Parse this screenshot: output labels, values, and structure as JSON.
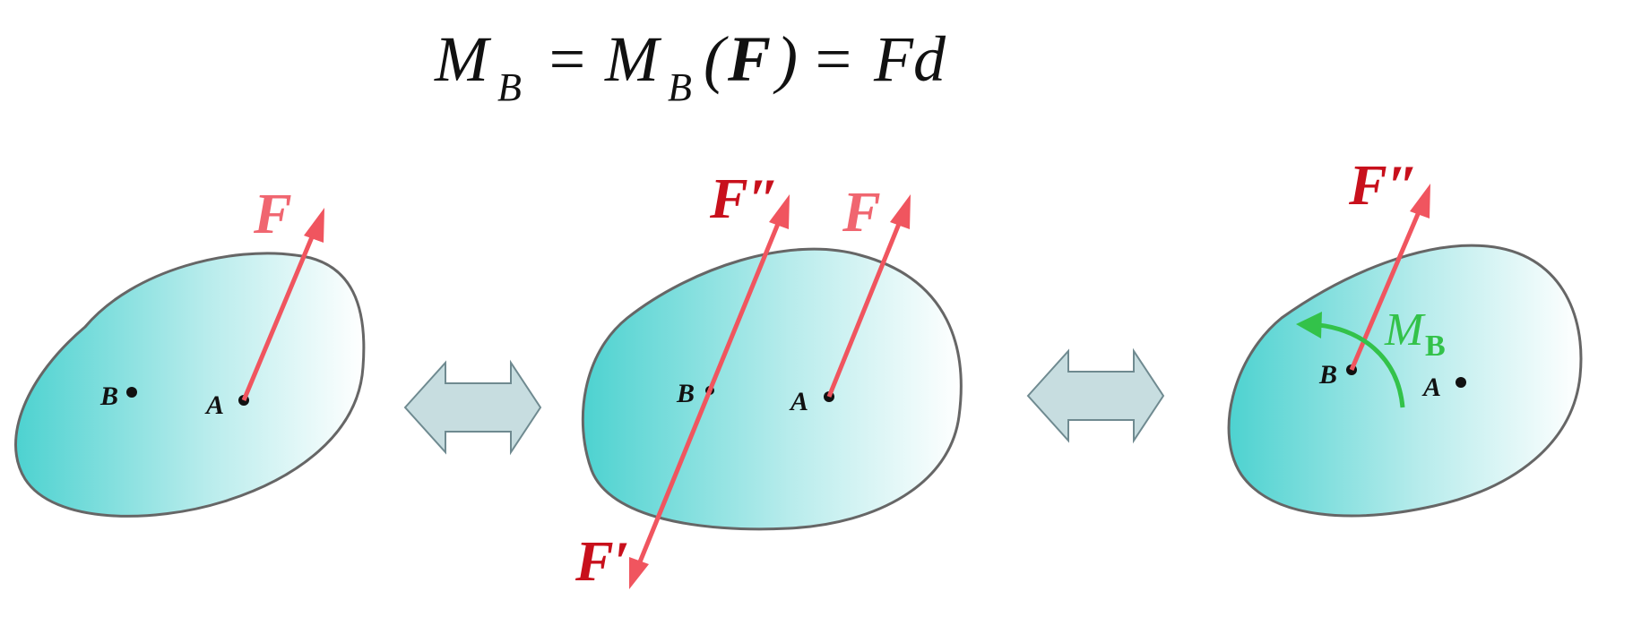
{
  "formula": {
    "M": "M",
    "sub_B": "B",
    "eq1": "=",
    "M2": "M",
    "sub_B2": "B",
    "lparen": "(",
    "F": "F",
    "rparen": ")",
    "eq2": "=",
    "Fd": "Fd"
  },
  "colors": {
    "force": "#f0555f",
    "force_label_light": "#f06670",
    "force_label_dark": "#c8101c",
    "moment": "#33c24a",
    "body_fill_dark": "#4dd2d0",
    "body_fill_light": "#ffffff",
    "body_stroke": "#666666",
    "arrow_fill": "#c7dde0",
    "arrow_stroke": "#6f8a90"
  },
  "panels": [
    {
      "point_B": "B",
      "point_A": "A",
      "force_F": "F"
    },
    {
      "point_B": "B",
      "point_A": "A",
      "force_F": "F",
      "force_F_double_prime": "F″",
      "force_F_prime": "F′"
    },
    {
      "point_B": "B",
      "point_A": "A",
      "force_F_double_prime": "F″",
      "moment_M": "M",
      "moment_sub": "B"
    }
  ],
  "equivalence_arrows": [
    {
      "icon": "double-arrow-icon"
    },
    {
      "icon": "double-arrow-icon"
    }
  ]
}
